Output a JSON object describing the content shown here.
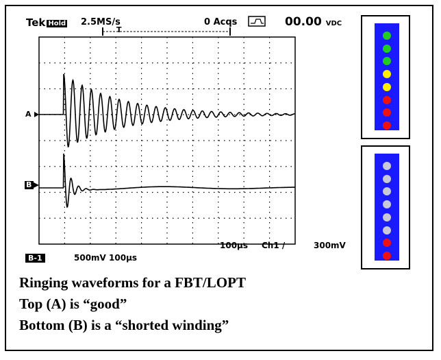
{
  "scope": {
    "brand": "Tek",
    "hold": "Hold",
    "rate": "2.5MS/s",
    "trigger_marker": "T",
    "acqs": "0 Acqs",
    "readout": "00.00",
    "readout_unit": "VDC",
    "ch_a": "A",
    "ch_b": "B",
    "timebase": "100µs",
    "trigger_ch": "Ch1 /",
    "trigger_level": "300mV",
    "ch_label": "B-1",
    "ch_scale": "500mV 100µs"
  },
  "caption": {
    "line1": "Ringing waveforms for a FBT/LOPT",
    "line2": "Top (A) is “good”",
    "line3": "Bottom (B) is a “shorted winding”"
  },
  "meters": [
    {
      "colors": [
        "#22cc22",
        "#22cc22",
        "#22cc22",
        "#ffee00",
        "#ffee00",
        "#ee1111",
        "#ee1111",
        "#ee1111"
      ]
    },
    {
      "colors": [
        "#c8c8d8",
        "#c8c8d8",
        "#c8c8d8",
        "#c8c8d8",
        "#c8c8d8",
        "#c8c8d8",
        "#ee1111",
        "#ee1111"
      ]
    }
  ]
}
